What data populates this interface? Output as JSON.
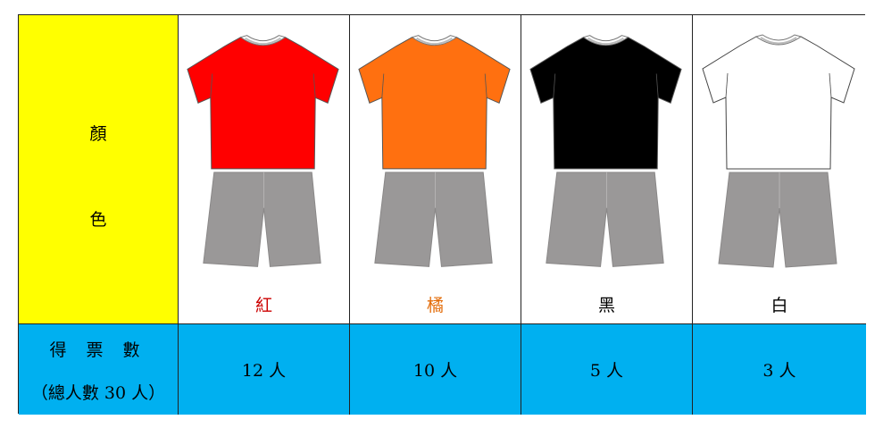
{
  "header": {
    "label_line1": "顏",
    "label_line2": "色"
  },
  "votes_header": {
    "line1": "得 票 數",
    "line2": "（總人數 30 人）"
  },
  "options": [
    {
      "name": "紅",
      "name_color": "#cc0000",
      "shirt_color": "#ff0000",
      "votes": "12 人"
    },
    {
      "name": "橘",
      "name_color": "#e36c09",
      "shirt_color": "#ff7010",
      "votes": "10 人"
    },
    {
      "name": "黑",
      "name_color": "#000000",
      "shirt_color": "#000000",
      "votes": "5 人"
    },
    {
      "name": "白",
      "name_color": "#000000",
      "shirt_color": "#ffffff",
      "votes": "3 人"
    }
  ],
  "pants_color": "#9a9898",
  "colors": {
    "header_bg": "#ffff00",
    "votes_bg": "#00b0f0"
  }
}
